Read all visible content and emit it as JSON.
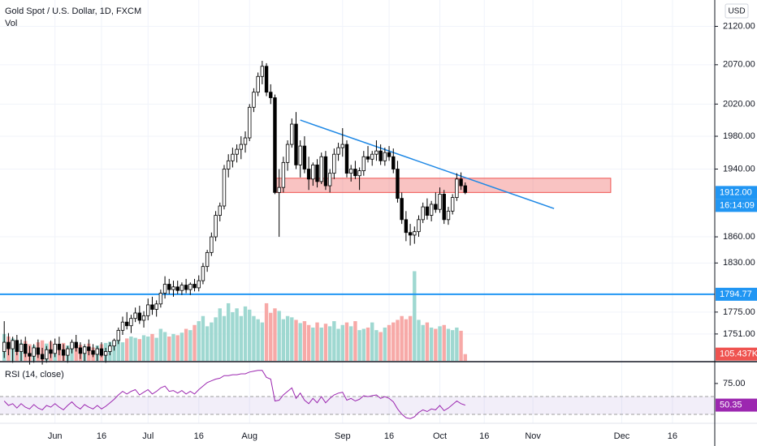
{
  "chart_data": {
    "type": "candlestick",
    "title": "Gold Spot / U.S. Dollar, 1D, FXCM",
    "currency": "USD",
    "ohlc": [
      [
        1732,
        1765,
        1725,
        1742
      ],
      [
        1742,
        1752,
        1728,
        1735
      ],
      [
        1735,
        1748,
        1720,
        1744
      ],
      [
        1744,
        1750,
        1728,
        1732
      ],
      [
        1732,
        1745,
        1722,
        1740
      ],
      [
        1740,
        1748,
        1726,
        1730
      ],
      [
        1730,
        1738,
        1718,
        1727
      ],
      [
        1727,
        1740,
        1720,
        1736
      ],
      [
        1736,
        1745,
        1725,
        1729
      ],
      [
        1729,
        1736,
        1718,
        1724
      ],
      [
        1724,
        1738,
        1720,
        1734
      ],
      [
        1734,
        1744,
        1725,
        1730
      ],
      [
        1730,
        1746,
        1726,
        1740
      ],
      [
        1740,
        1748,
        1728,
        1734
      ],
      [
        1734,
        1740,
        1722,
        1728
      ],
      [
        1728,
        1738,
        1720,
        1735
      ],
      [
        1735,
        1745,
        1730,
        1742
      ],
      [
        1742,
        1750,
        1732,
        1736
      ],
      [
        1736,
        1742,
        1724,
        1730
      ],
      [
        1730,
        1740,
        1722,
        1737
      ],
      [
        1737,
        1745,
        1728,
        1733
      ],
      [
        1733,
        1740,
        1726,
        1729
      ],
      [
        1729,
        1738,
        1722,
        1735
      ],
      [
        1735,
        1742,
        1726,
        1728
      ],
      [
        1728,
        1736,
        1720,
        1732
      ],
      [
        1732,
        1742,
        1728,
        1738
      ],
      [
        1738,
        1746,
        1733,
        1744
      ],
      [
        1744,
        1758,
        1740,
        1755
      ],
      [
        1755,
        1770,
        1750,
        1764
      ],
      [
        1764,
        1775,
        1756,
        1760
      ],
      [
        1760,
        1772,
        1752,
        1768
      ],
      [
        1768,
        1780,
        1764,
        1774
      ],
      [
        1774,
        1782,
        1762,
        1766
      ],
      [
        1766,
        1776,
        1758,
        1771
      ],
      [
        1771,
        1790,
        1766,
        1783
      ],
      [
        1783,
        1792,
        1772,
        1778
      ],
      [
        1778,
        1788,
        1770,
        1784
      ],
      [
        1784,
        1800,
        1780,
        1796
      ],
      [
        1796,
        1815,
        1790,
        1806
      ],
      [
        1806,
        1812,
        1795,
        1800
      ],
      [
        1800,
        1810,
        1792,
        1803
      ],
      [
        1803,
        1810,
        1795,
        1799
      ],
      [
        1799,
        1808,
        1794,
        1805
      ],
      [
        1805,
        1812,
        1796,
        1800
      ],
      [
        1800,
        1808,
        1794,
        1806
      ],
      [
        1806,
        1812,
        1798,
        1802
      ],
      [
        1802,
        1816,
        1798,
        1810
      ],
      [
        1810,
        1830,
        1806,
        1826
      ],
      [
        1826,
        1845,
        1820,
        1842
      ],
      [
        1842,
        1865,
        1838,
        1860
      ],
      [
        1860,
        1890,
        1855,
        1885
      ],
      [
        1885,
        1900,
        1878,
        1896
      ],
      [
        1896,
        1945,
        1892,
        1940
      ],
      [
        1940,
        1958,
        1930,
        1950
      ],
      [
        1950,
        1966,
        1942,
        1958
      ],
      [
        1958,
        1970,
        1948,
        1964
      ],
      [
        1964,
        1980,
        1952,
        1970
      ],
      [
        1970,
        1986,
        1960,
        1978
      ],
      [
        1978,
        2020,
        1974,
        2016
      ],
      [
        2016,
        2040,
        2010,
        2035
      ],
      [
        2035,
        2060,
        2030,
        2055
      ],
      [
        2055,
        2075,
        2045,
        2068
      ],
      [
        2068,
        2072,
        2030,
        2035
      ],
      [
        2035,
        2045,
        2020,
        2028
      ],
      [
        2028,
        2032,
        1910,
        1912
      ],
      [
        1912,
        1940,
        1860,
        1918
      ],
      [
        1918,
        1955,
        1912,
        1948
      ],
      [
        1948,
        1975,
        1938,
        1970
      ],
      [
        1970,
        2002,
        1966,
        1995
      ],
      [
        1995,
        2010,
        1940,
        1945
      ],
      [
        1945,
        1975,
        1930,
        1968
      ],
      [
        1968,
        1980,
        1935,
        1940
      ],
      [
        1940,
        1955,
        1915,
        1928
      ],
      [
        1928,
        1948,
        1920,
        1945
      ],
      [
        1945,
        1952,
        1918,
        1925
      ],
      [
        1925,
        1960,
        1922,
        1955
      ],
      [
        1955,
        1962,
        1915,
        1920
      ],
      [
        1920,
        1940,
        1912,
        1935
      ],
      [
        1935,
        1965,
        1928,
        1958
      ],
      [
        1958,
        1972,
        1950,
        1966
      ],
      [
        1966,
        1990,
        1955,
        1970
      ],
      [
        1970,
        1975,
        1930,
        1935
      ],
      [
        1935,
        1945,
        1925,
        1940
      ],
      [
        1940,
        1950,
        1928,
        1932
      ],
      [
        1932,
        1942,
        1915,
        1938
      ],
      [
        1938,
        1962,
        1932,
        1955
      ],
      [
        1955,
        1968,
        1948,
        1952
      ],
      [
        1952,
        1962,
        1944,
        1958
      ],
      [
        1958,
        1975,
        1950,
        1962
      ],
      [
        1962,
        1970,
        1945,
        1950
      ],
      [
        1950,
        1966,
        1944,
        1960
      ],
      [
        1960,
        1968,
        1950,
        1955
      ],
      [
        1955,
        1965,
        1935,
        1940
      ],
      [
        1940,
        1950,
        1900,
        1905
      ],
      [
        1905,
        1912,
        1875,
        1880
      ],
      [
        1880,
        1890,
        1855,
        1865
      ],
      [
        1865,
        1875,
        1850,
        1862
      ],
      [
        1862,
        1872,
        1852,
        1866
      ],
      [
        1866,
        1885,
        1860,
        1880
      ],
      [
        1880,
        1900,
        1876,
        1895
      ],
      [
        1895,
        1905,
        1880,
        1885
      ],
      [
        1885,
        1902,
        1878,
        1898
      ],
      [
        1898,
        1912,
        1888,
        1892
      ],
      [
        1892,
        1918,
        1888,
        1910
      ],
      [
        1910,
        1915,
        1875,
        1880
      ],
      [
        1880,
        1895,
        1874,
        1890
      ],
      [
        1890,
        1910,
        1886,
        1906
      ],
      [
        1906,
        1935,
        1902,
        1928
      ],
      [
        1928,
        1936,
        1915,
        1920
      ],
      [
        1920,
        1924,
        1910,
        1912
      ]
    ],
    "ylim": [
      1722,
      2155
    ],
    "log_scale": true,
    "yticks": [
      {
        "value": 2120,
        "label": "2120.00"
      },
      {
        "value": 2070,
        "label": "2070.00"
      },
      {
        "value": 2020,
        "label": "2020.00"
      },
      {
        "value": 1980,
        "label": "1980.00"
      },
      {
        "value": 1940,
        "label": "1940.00"
      },
      {
        "value": 1860,
        "label": "1860.00"
      },
      {
        "value": 1830,
        "label": "1830.00"
      },
      {
        "value": 1775,
        "label": "1775.00"
      },
      {
        "value": 1751,
        "label": "1751.00"
      }
    ],
    "xlim": [
      -1,
      168
    ],
    "xticks": [
      {
        "value": 12,
        "label": "Jun"
      },
      {
        "value": 23,
        "label": "16"
      },
      {
        "value": 34,
        "label": "Jul"
      },
      {
        "value": 46,
        "label": "16"
      },
      {
        "value": 58,
        "label": "Aug"
      },
      {
        "value": 80,
        "label": "Sep"
      },
      {
        "value": 91,
        "label": "16"
      },
      {
        "value": 103,
        "label": "Oct"
      },
      {
        "value": 113.5,
        "label": "16"
      },
      {
        "value": 125,
        "label": "Nov"
      },
      {
        "value": 146,
        "label": "Dec"
      },
      {
        "value": 158,
        "label": "16"
      }
    ],
    "grid": true,
    "colors": {
      "up": "#ffffff",
      "down": "#000000",
      "wick": "#000000"
    },
    "last_price": {
      "value": 1912,
      "label": "1912.00",
      "color": "#2196f3"
    },
    "countdown": "16:14:09",
    "horizontal_line": {
      "value": 1794.77,
      "color": "#2196f3"
    },
    "trendline": {
      "x": [
        70,
        130
      ],
      "values": [
        2000,
        1893
      ],
      "color": "#1e88e5"
    },
    "zone": {
      "x": [
        64.3,
        143.4
      ],
      "values": [
        1912,
        1929
      ],
      "color": "#ef5350"
    },
    "volume": {
      "name": "Vol",
      "values": [
        420,
        380,
        350,
        300,
        280,
        310,
        260,
        240,
        290,
        320,
        270,
        300,
        250,
        230,
        280,
        240,
        260,
        220,
        250,
        230,
        270,
        210,
        240,
        260,
        280,
        300,
        310,
        330,
        290,
        350,
        380,
        360,
        340,
        400,
        380,
        420,
        360,
        500,
        450,
        380,
        420,
        400,
        440,
        500,
        480,
        560,
        620,
        700,
        540,
        600,
        680,
        820,
        700,
        900,
        760,
        820,
        700,
        850,
        800,
        700,
        650,
        600,
        900,
        750,
        820,
        780,
        650,
        700,
        680,
        640,
        590,
        620,
        560,
        520,
        600,
        520,
        580,
        540,
        620,
        500,
        560,
        600,
        540,
        620,
        480,
        500,
        520,
        600,
        480,
        450,
        520,
        560,
        600,
        640,
        700,
        650,
        700,
        1400,
        640,
        560,
        600,
        520,
        500,
        540,
        560,
        500,
        480,
        520,
        470,
        105.437
      ],
      "last_label": "105.437K",
      "ylim": [
        0,
        1900
      ],
      "up_color": "#9fd8d1",
      "down_color": "#f7a9a7",
      "label_color": "#ef5350"
    },
    "rsi": {
      "name": "RSI (14, close)",
      "values": [
        55,
        50,
        52,
        47,
        52,
        48,
        46,
        51,
        47,
        45,
        50,
        48,
        52,
        48,
        45,
        50,
        54,
        49,
        46,
        51,
        48,
        46,
        50,
        46,
        49,
        53,
        57,
        62,
        66,
        63,
        66,
        68,
        62,
        65,
        68,
        63,
        66,
        70,
        72,
        66,
        67,
        64,
        67,
        63,
        66,
        63,
        68,
        72,
        76,
        78,
        80,
        81,
        84,
        84,
        85,
        85,
        86,
        86,
        88,
        89,
        90,
        90,
        82,
        80,
        55,
        56,
        62,
        66,
        70,
        58,
        64,
        56,
        52,
        58,
        53,
        60,
        53,
        58,
        62,
        64,
        65,
        56,
        58,
        55,
        57,
        61,
        60,
        61,
        62,
        58,
        60,
        58,
        54,
        46,
        40,
        36,
        35,
        37,
        42,
        45,
        43,
        46,
        45,
        50,
        44,
        47,
        51,
        55,
        52,
        50.35
      ],
      "ylim": [
        30,
        98
      ],
      "yticks": [
        {
          "value": 75,
          "label": "75.00"
        }
      ],
      "color": "#9c27b0"
    }
  }
}
